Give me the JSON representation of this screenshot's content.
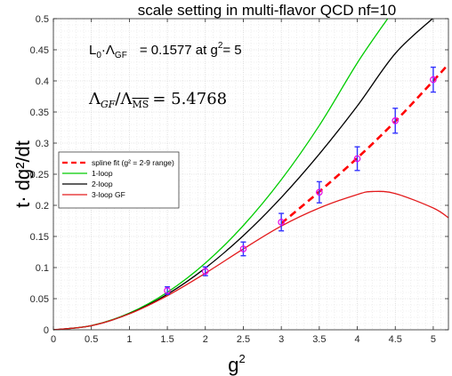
{
  "chart_data": {
    "type": "line",
    "title": "scale setting in multi-flavor QCD     nf=10",
    "xlabel": "g",
    "xlabel_sup": "2",
    "ylabel": "t· dg²/dt",
    "xlim": [
      0,
      5.2
    ],
    "ylim": [
      0,
      0.5
    ],
    "x_ticks": [
      0,
      0.5,
      1,
      1.5,
      2,
      2.5,
      3,
      3.5,
      4,
      4.5,
      5
    ],
    "x_tick_labels": [
      "0",
      "0.5",
      "1",
      "1.5",
      "2",
      "2.5",
      "3",
      "3.5",
      "4",
      "4.5",
      "5"
    ],
    "y_ticks": [
      0,
      0.05,
      0.1,
      0.15,
      0.2,
      0.25,
      0.3,
      0.35,
      0.4,
      0.45,
      0.5
    ],
    "y_tick_labels": [
      "0",
      "0.05",
      "0.1",
      "0.15",
      "0.2",
      "0.25",
      "0.3",
      "0.35",
      "0.4",
      "0.45",
      "0.5"
    ],
    "grid": true,
    "legend_position": "middle-left",
    "annotations": {
      "l0_prefix": "L",
      "l0_sub": "0",
      "l0_mid": "·Λ",
      "l0_sub2": "GF",
      "l0_value": "= 0.1577  at g",
      "l0_sup": "2",
      "l0_tail": "= 5",
      "ratio_left": "Λ",
      "ratio_sub_left": "GF",
      "ratio_slash": "/Λ",
      "ratio_sub_right": "MS",
      "ratio_value": "= 5.4768"
    },
    "series": [
      {
        "name": "spline fit (g² = 2-9 range)",
        "color": "#ff0000",
        "style": "dashed",
        "x": [
          3.0,
          3.5,
          4.0,
          4.5,
          5.0,
          5.2
        ],
        "y": [
          0.171,
          0.222,
          0.276,
          0.335,
          0.4,
          0.427
        ]
      },
      {
        "name": "1-loop",
        "color": "#00cc00",
        "style": "solid",
        "x": [
          0,
          0.5,
          1,
          1.5,
          2,
          2.5,
          3,
          3.5,
          4,
          4.4
        ],
        "y": [
          0,
          0.0067,
          0.0268,
          0.0603,
          0.1072,
          0.1675,
          0.2412,
          0.3283,
          0.4288,
          0.5
        ]
      },
      {
        "name": "2-loop",
        "color": "#000000",
        "style": "solid",
        "x": [
          0,
          0.5,
          1,
          1.5,
          2,
          2.5,
          3,
          3.5,
          4,
          4.5,
          4.99
        ],
        "y": [
          0,
          0.0066,
          0.0259,
          0.0571,
          0.0992,
          0.1513,
          0.2126,
          0.2824,
          0.3597,
          0.444,
          0.5
        ]
      },
      {
        "name": "3-loop GF",
        "color": "#e31a1c",
        "style": "solid",
        "x": [
          0,
          0.5,
          1,
          1.5,
          2,
          2.5,
          3,
          3.5,
          4,
          4.2,
          4.5,
          5,
          5.2
        ],
        "y": [
          0,
          0.0066,
          0.0256,
          0.0548,
          0.0909,
          0.1299,
          0.1667,
          0.1957,
          0.2174,
          0.2222,
          0.219,
          0.1957,
          0.18
        ]
      }
    ],
    "data_points": {
      "name": "data",
      "marker_color": "#e600e6",
      "errorbar_color": "#3333ff",
      "x": [
        1.5,
        2.0,
        2.5,
        3.0,
        3.5,
        4.0,
        4.5,
        5.0
      ],
      "y": [
        0.063,
        0.094,
        0.13,
        0.173,
        0.221,
        0.275,
        0.336,
        0.402
      ],
      "err": [
        0.006,
        0.007,
        0.011,
        0.014,
        0.017,
        0.019,
        0.02,
        0.02
      ]
    }
  }
}
